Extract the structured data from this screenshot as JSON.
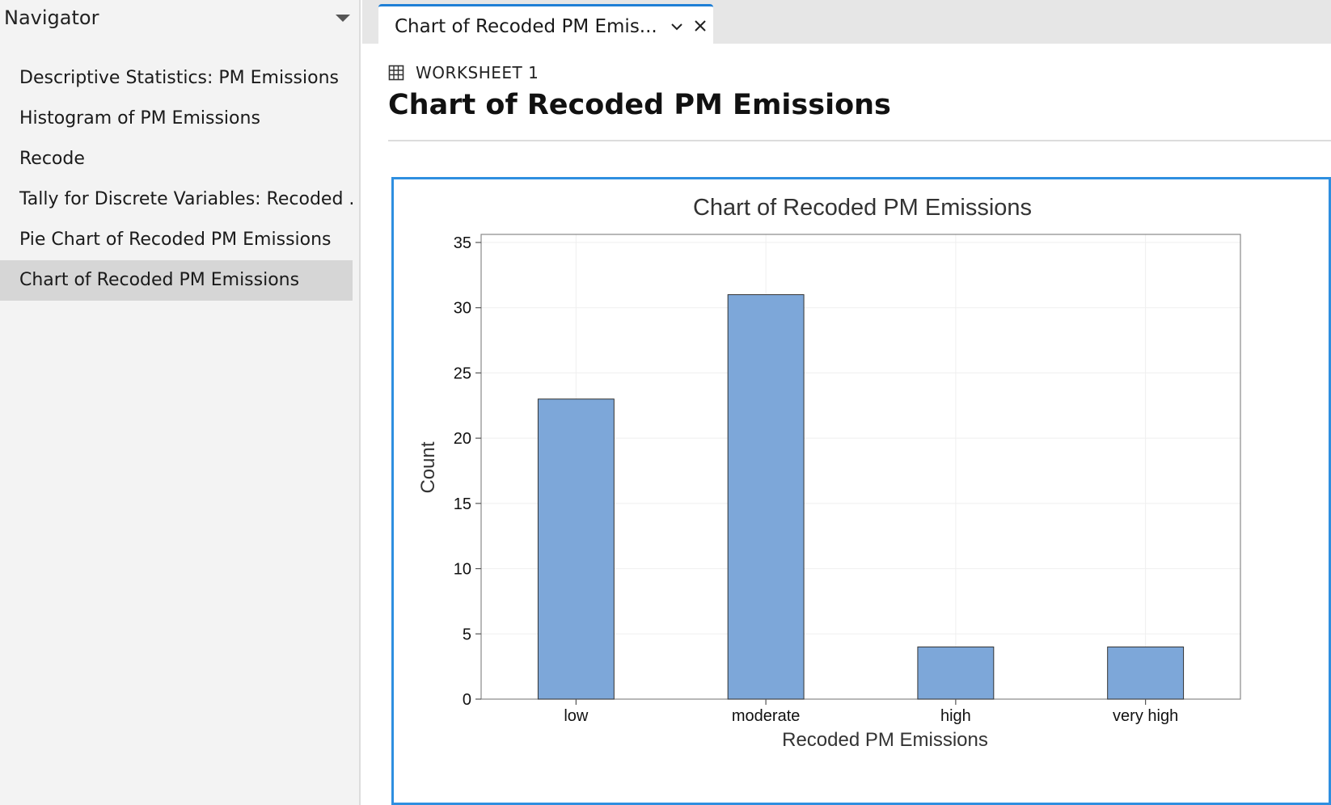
{
  "navigator": {
    "title": "Navigator",
    "items": [
      {
        "label": "Descriptive Statistics: PM Emissions",
        "selected": false
      },
      {
        "label": "Histogram of PM Emissions",
        "selected": false
      },
      {
        "label": "Recode",
        "selected": false
      },
      {
        "label": "Tally for Discrete Variables: Recoded ...",
        "selected": false
      },
      {
        "label": "Pie Chart of Recoded PM Emissions",
        "selected": false
      },
      {
        "label": "Chart of Recoded PM Emissions",
        "selected": true
      }
    ]
  },
  "tab": {
    "label": "Chart of Recoded PM Emis...",
    "dropdown_icon": "chevron-down-icon",
    "close_icon": "close-icon"
  },
  "output": {
    "worksheet": "WORKSHEET 1",
    "worksheet_icon": "grid-icon",
    "title": "Chart of Recoded PM Emissions"
  },
  "colors": {
    "accent": "#1f7fd6",
    "frame": "#2e8fe0",
    "bar_fill": "#7da7d9",
    "bar_stroke": "#333333",
    "selected_row": "#d6d6d6"
  },
  "chart_data": {
    "type": "bar",
    "title": "Chart of Recoded PM Emissions",
    "xlabel": "Recoded PM Emissions",
    "ylabel": "Count",
    "categories": [
      "low",
      "moderate",
      "high",
      "very high"
    ],
    "values": [
      23,
      31,
      4,
      4
    ],
    "ylim": [
      0,
      35
    ],
    "yticks": [
      0,
      5,
      10,
      15,
      20,
      25,
      30,
      35
    ],
    "grid": true,
    "legend": "none"
  }
}
